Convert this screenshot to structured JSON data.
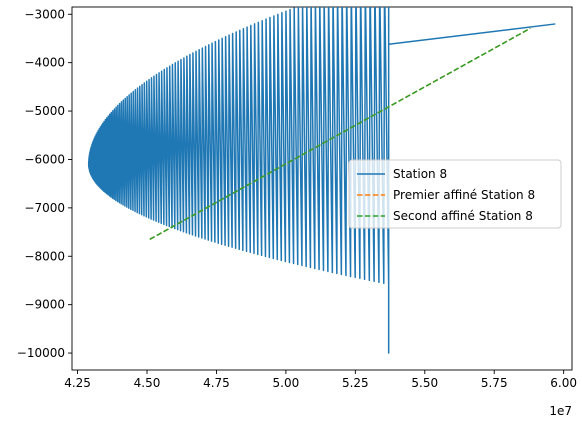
{
  "chart_data": {
    "type": "line",
    "title": "",
    "xlabel": "",
    "ylabel": "",
    "x_offset_label": "1e7",
    "xlim": [
      42300000,
      60300000
    ],
    "ylim": [
      -10350.0,
      -2850
    ],
    "x_ticks": [
      42500000,
      45000000,
      47500000,
      50000000,
      52500000,
      55000000,
      57500000,
      60000000
    ],
    "x_tick_labels": [
      "4.25",
      "4.50",
      "4.75",
      "5.00",
      "5.25",
      "5.50",
      "5.75",
      "6.00"
    ],
    "y_ticks": [
      -10000,
      -9000,
      -8000,
      -7000,
      -6000,
      -5000,
      -4000,
      -3000
    ],
    "y_tick_labels": [
      "−10000",
      "−9000",
      "−8000",
      "−7000",
      "−6000",
      "−5000",
      "−4000",
      "−3000"
    ],
    "grid": false,
    "legend_position": "center-right",
    "series": [
      {
        "name": "Station 8",
        "color": "#1f77b4",
        "style": "solid",
        "description_points": {
          "oscillation_envelope_vertex": [
            42900000,
            -6100
          ],
          "upper_envelope_end": [
            53700000,
            -3620
          ],
          "lower_envelope_end": [
            53700000,
            -10000
          ],
          "tail": [
            [
              53700000,
              -3620
            ],
            [
              59700000,
              -3200
            ]
          ]
        }
      },
      {
        "name": "Premier affiné Station 8",
        "color": "#ff7f0e",
        "style": "dashed",
        "x": [
          45100000,
          58800000
        ],
        "y": [
          -7650,
          -3290
        ]
      },
      {
        "name": "Second affiné Station 8",
        "color": "#2ca02c",
        "style": "dashed",
        "x": [
          45100000,
          58800000
        ],
        "y": [
          -7650,
          -3290
        ]
      }
    ]
  }
}
